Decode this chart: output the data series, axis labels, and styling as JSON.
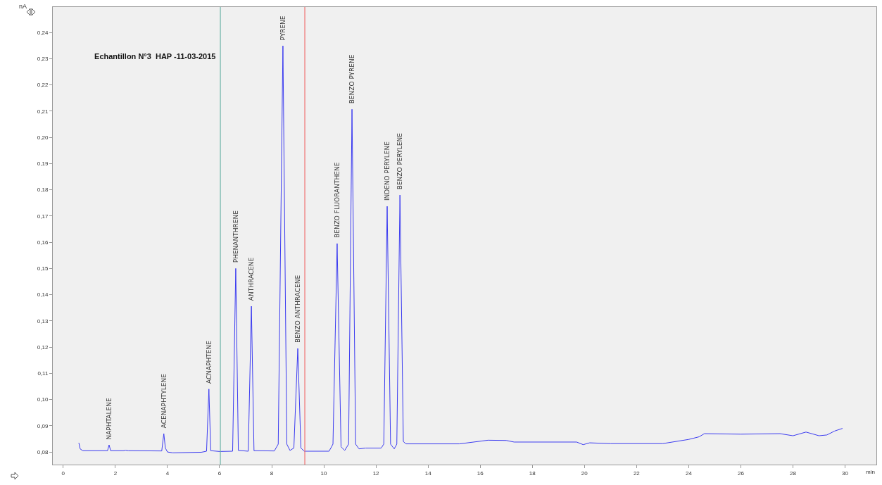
{
  "chart_data": {
    "type": "line",
    "title": "Echantillon N°3  HAP -11-03-2015",
    "xlabel": "min",
    "ylabel": "nA",
    "color": "#3b3bf0",
    "x": [
      0.6,
      0.65,
      0.75,
      1.7,
      1.76,
      1.82,
      2.3,
      2.4,
      2.5,
      3.78,
      3.86,
      3.92,
      4.0,
      4.2,
      5.3,
      5.5,
      5.59,
      5.66,
      6.0,
      6.5,
      6.62,
      6.72,
      7.1,
      7.22,
      7.32,
      8.1,
      8.25,
      8.43,
      8.58,
      8.7,
      8.85,
      9.0,
      9.12,
      9.25,
      10.2,
      10.35,
      10.51,
      10.66,
      10.8,
      10.95,
      11.08,
      11.22,
      11.35,
      11.6,
      12.2,
      12.3,
      12.43,
      12.56,
      12.7,
      12.8,
      12.92,
      13.05,
      13.15,
      15.2,
      16.3,
      17.0,
      17.3,
      19.7,
      19.95,
      20.2,
      21.0,
      23.0,
      24.0,
      24.4,
      24.6,
      26.0,
      27.5,
      28.0,
      28.5,
      29.0,
      29.3,
      29.6,
      29.9
    ],
    "values": [
      0.0835,
      0.0812,
      0.0805,
      0.0805,
      0.0827,
      0.0805,
      0.0805,
      0.0807,
      0.0805,
      0.0804,
      0.087,
      0.0815,
      0.08,
      0.0797,
      0.0799,
      0.0803,
      0.104,
      0.0805,
      0.0802,
      0.0803,
      0.15,
      0.0806,
      0.0803,
      0.1356,
      0.0805,
      0.0804,
      0.083,
      0.2349,
      0.083,
      0.0806,
      0.0815,
      0.1195,
      0.0815,
      0.0803,
      0.0803,
      0.083,
      0.1595,
      0.082,
      0.0806,
      0.083,
      0.2107,
      0.083,
      0.0812,
      0.0815,
      0.0815,
      0.083,
      0.1737,
      0.083,
      0.0812,
      0.083,
      0.178,
      0.084,
      0.0831,
      0.0831,
      0.0845,
      0.0844,
      0.0838,
      0.0838,
      0.0828,
      0.0835,
      0.0832,
      0.0832,
      0.0848,
      0.0858,
      0.087,
      0.0868,
      0.087,
      0.0862,
      0.0876,
      0.0862,
      0.0865,
      0.088,
      0.089
    ],
    "xlim": [
      -0.4,
      31.2
    ],
    "ylim": [
      0.0752,
      0.2497
    ],
    "xticks": [
      0,
      2,
      4,
      6,
      8,
      10,
      12,
      14,
      16,
      18,
      20,
      22,
      24,
      26,
      28,
      30
    ],
    "yticks": [
      {
        "value": 0.08,
        "label": "0,08"
      },
      {
        "value": 0.09,
        "label": "0,09"
      },
      {
        "value": 0.1,
        "label": "0,10"
      },
      {
        "value": 0.11,
        "label": "0,11"
      },
      {
        "value": 0.12,
        "label": "0,12"
      },
      {
        "value": 0.13,
        "label": "0,13"
      },
      {
        "value": 0.14,
        "label": "0,14"
      },
      {
        "value": 0.15,
        "label": "0,15"
      },
      {
        "value": 0.16,
        "label": "0,16"
      },
      {
        "value": 0.17,
        "label": "0,17"
      },
      {
        "value": 0.18,
        "label": "0,18"
      },
      {
        "value": 0.19,
        "label": "0,19"
      },
      {
        "value": 0.2,
        "label": "0,20"
      },
      {
        "value": 0.21,
        "label": "0,21"
      },
      {
        "value": 0.22,
        "label": "0,22"
      },
      {
        "value": 0.23,
        "label": "0,23"
      },
      {
        "value": 0.24,
        "label": "0,24"
      }
    ],
    "annotations": [
      {
        "text": "NAPHTALENE",
        "x": 1.76,
        "y": 0.0827
      },
      {
        "text": "ACENAPHTYLENE",
        "x": 3.86,
        "y": 0.087
      },
      {
        "text": "ACNAPHTENE",
        "x": 5.59,
        "y": 0.104
      },
      {
        "text": "PHENANTHRENE",
        "x": 6.62,
        "y": 0.15
      },
      {
        "text": "ANTHRACENE",
        "x": 7.22,
        "y": 0.1356
      },
      {
        "text": "PYRENE",
        "x": 8.43,
        "y": 0.2349
      },
      {
        "text": "BENZO ANTHRACENE",
        "x": 9.0,
        "y": 0.1195
      },
      {
        "text": "BENZO FLUORANTHENE",
        "x": 10.51,
        "y": 0.1595
      },
      {
        "text": "BENZO PYRENE",
        "x": 11.08,
        "y": 0.2107
      },
      {
        "text": "INDENO PERYLENE",
        "x": 12.43,
        "y": 0.1737
      },
      {
        "text": "BENZO PERYLENE",
        "x": 12.92,
        "y": 0.178
      }
    ],
    "ref_lines": [
      {
        "axis": "x",
        "value": 6.03,
        "color": "#6fb5a8"
      },
      {
        "axis": "x",
        "value": 9.27,
        "color": "#f07070"
      }
    ]
  }
}
